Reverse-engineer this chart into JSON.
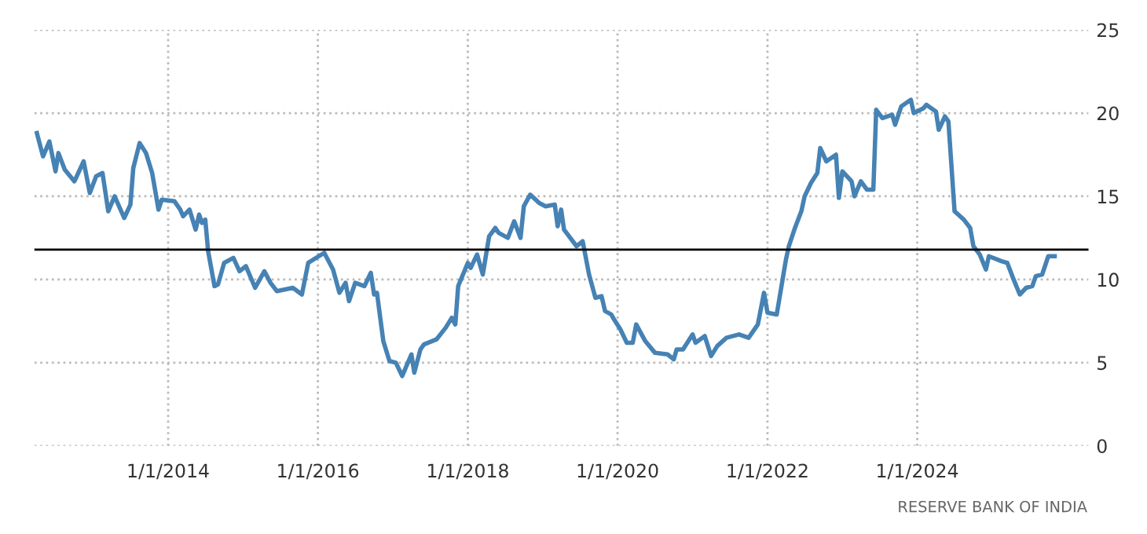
{
  "chart_data": {
    "type": "line",
    "x": [
      "2012-04-01",
      "2012-05-01",
      "2012-06-01",
      "2012-07-01",
      "2012-07-15",
      "2012-08-15",
      "2012-10-01",
      "2012-11-15",
      "2012-12-15",
      "2013-01-15",
      "2013-02-15",
      "2013-03-15",
      "2013-04-15",
      "2013-06-01",
      "2013-07-01",
      "2013-07-15",
      "2013-08-15",
      "2013-09-15",
      "2013-10-15",
      "2013-11-15",
      "2013-12-01",
      "2014-02-01",
      "2014-03-01",
      "2014-03-15",
      "2014-04-15",
      "2014-05-15",
      "2014-06-01",
      "2014-06-15",
      "2014-07-01",
      "2014-07-15",
      "2014-08-15",
      "2014-09-01",
      "2014-10-01",
      "2014-11-15",
      "2014-12-15",
      "2015-01-15",
      "2015-03-01",
      "2015-04-15",
      "2015-05-15",
      "2015-06-15",
      "2015-09-01",
      "2015-10-15",
      "2015-11-15",
      "2016-02-01",
      "2016-03-15",
      "2016-04-15",
      "2016-05-15",
      "2016-06-01",
      "2016-07-01",
      "2016-08-15",
      "2016-09-15",
      "2016-10-01",
      "2016-10-15",
      "2016-11-15",
      "2016-12-15",
      "2017-01-15",
      "2017-02-15",
      "2017-04-01",
      "2017-04-15",
      "2017-05-15",
      "2017-06-01",
      "2017-08-01",
      "2017-09-15",
      "2017-10-15",
      "2017-11-01",
      "2017-11-15",
      "2018-01-01",
      "2018-01-15",
      "2018-02-15",
      "2018-03-15",
      "2018-04-15",
      "2018-05-15",
      "2018-06-01",
      "2018-07-15",
      "2018-08-15",
      "2018-09-15",
      "2018-10-01",
      "2018-11-01",
      "2018-12-15",
      "2019-01-15",
      "2019-03-01",
      "2019-03-15",
      "2019-04-01",
      "2019-04-15",
      "2019-06-15",
      "2019-07-15",
      "2019-08-15",
      "2019-09-15",
      "2019-10-15",
      "2019-11-01",
      "2019-12-01",
      "2019-12-15",
      "2020-01-15",
      "2020-02-15",
      "2020-03-15",
      "2020-04-01",
      "2020-05-15",
      "2020-07-01",
      "2020-09-01",
      "2020-10-01",
      "2020-10-15",
      "2020-11-15",
      "2021-01-01",
      "2021-01-15",
      "2021-03-01",
      "2021-04-01",
      "2021-05-01",
      "2021-06-15",
      "2021-08-15",
      "2021-10-01",
      "2021-11-15",
      "2021-12-15",
      "2022-01-01",
      "2022-02-15",
      "2022-04-01",
      "2022-04-15",
      "2022-05-15",
      "2022-06-15",
      "2022-07-01",
      "2022-08-01",
      "2022-09-01",
      "2022-09-15",
      "2022-10-15",
      "2022-12-01",
      "2022-12-15",
      "2023-01-01",
      "2023-02-15",
      "2023-03-01",
      "2023-04-01",
      "2023-05-01",
      "2023-06-01",
      "2023-06-15",
      "2023-07-15",
      "2023-09-01",
      "2023-09-15",
      "2023-10-15",
      "2023-12-01",
      "2023-12-15",
      "2024-02-01",
      "2024-02-15",
      "2024-04-01",
      "2024-04-15",
      "2024-05-15",
      "2024-06-01",
      "2024-07-01",
      "2024-08-15",
      "2024-09-15",
      "2024-10-01",
      "2024-11-01",
      "2024-12-01",
      "2024-12-15",
      "2025-02-15",
      "2025-03-15",
      "2025-04-15",
      "2025-05-15",
      "2025-06-15",
      "2025-07-15",
      "2025-08-01",
      "2025-09-01",
      "2025-10-01",
      "2025-11-01"
    ],
    "series": [
      {
        "color": "#4682b4",
        "values": [
          18.8,
          17.4,
          18.3,
          16.5,
          17.6,
          16.6,
          15.9,
          17.1,
          15.2,
          16.2,
          16.4,
          14.1,
          15.0,
          13.7,
          14.5,
          16.7,
          18.2,
          17.6,
          16.4,
          14.2,
          14.8,
          14.7,
          14.2,
          13.8,
          14.2,
          13.0,
          13.9,
          13.4,
          13.6,
          11.7,
          9.6,
          9.7,
          11.0,
          11.3,
          10.5,
          10.8,
          9.5,
          10.5,
          9.8,
          9.3,
          9.5,
          9.1,
          11.0,
          11.6,
          10.6,
          9.2,
          9.8,
          8.7,
          9.8,
          9.6,
          10.4,
          9.1,
          9.2,
          6.3,
          5.1,
          5.0,
          4.2,
          5.5,
          4.4,
          5.8,
          6.1,
          6.4,
          7.1,
          7.7,
          7.3,
          9.6,
          11.0,
          10.7,
          11.5,
          10.3,
          12.6,
          13.1,
          12.8,
          12.5,
          13.5,
          12.5,
          14.4,
          15.1,
          14.6,
          14.4,
          14.5,
          13.2,
          14.2,
          13.0,
          12.0,
          12.3,
          10.3,
          8.9,
          9.0,
          8.1,
          7.9,
          7.6,
          7.0,
          6.2,
          6.2,
          7.3,
          6.3,
          5.6,
          5.5,
          5.2,
          5.8,
          5.8,
          6.7,
          6.2,
          6.6,
          5.4,
          6.0,
          6.5,
          6.7,
          6.5,
          7.3,
          9.2,
          8.0,
          7.9,
          11.2,
          12.0,
          13.1,
          14.1,
          15.0,
          15.8,
          16.4,
          17.9,
          17.1,
          17.5,
          14.9,
          16.5,
          15.9,
          15.0,
          15.9,
          15.4,
          15.4,
          20.2,
          19.7,
          19.9,
          19.3,
          20.4,
          20.8,
          20.0,
          20.3,
          20.5,
          20.1,
          19.0,
          19.8,
          19.5,
          14.1,
          13.6,
          13.1,
          12.0,
          11.5,
          10.6,
          11.4,
          11.1,
          11.0,
          10.0,
          9.1,
          9.5,
          9.6,
          10.2,
          10.3,
          11.4,
          11.4
        ]
      }
    ],
    "xlim": [
      "2012-03-20",
      "2026-04-15"
    ],
    "xticks": [
      {
        "value": "2014-01-01",
        "label": "1/1/2014"
      },
      {
        "value": "2016-01-01",
        "label": "1/1/2016"
      },
      {
        "value": "2018-01-01",
        "label": "1/1/2018"
      },
      {
        "value": "2020-01-01",
        "label": "1/1/2020"
      },
      {
        "value": "2022-01-01",
        "label": "1/1/2022"
      },
      {
        "value": "2024-01-01",
        "label": "1/1/2024"
      }
    ],
    "ylim": [
      0,
      25
    ],
    "yticks": [
      0,
      5,
      10,
      15,
      20,
      25
    ],
    "grid": true,
    "marker": "none",
    "line_style": "solid",
    "ref_lines": [
      {
        "axis": "y",
        "value": 11.8,
        "color": "#000000"
      }
    ],
    "annotations": [
      "RESERVE BANK OF INDIA"
    ]
  }
}
